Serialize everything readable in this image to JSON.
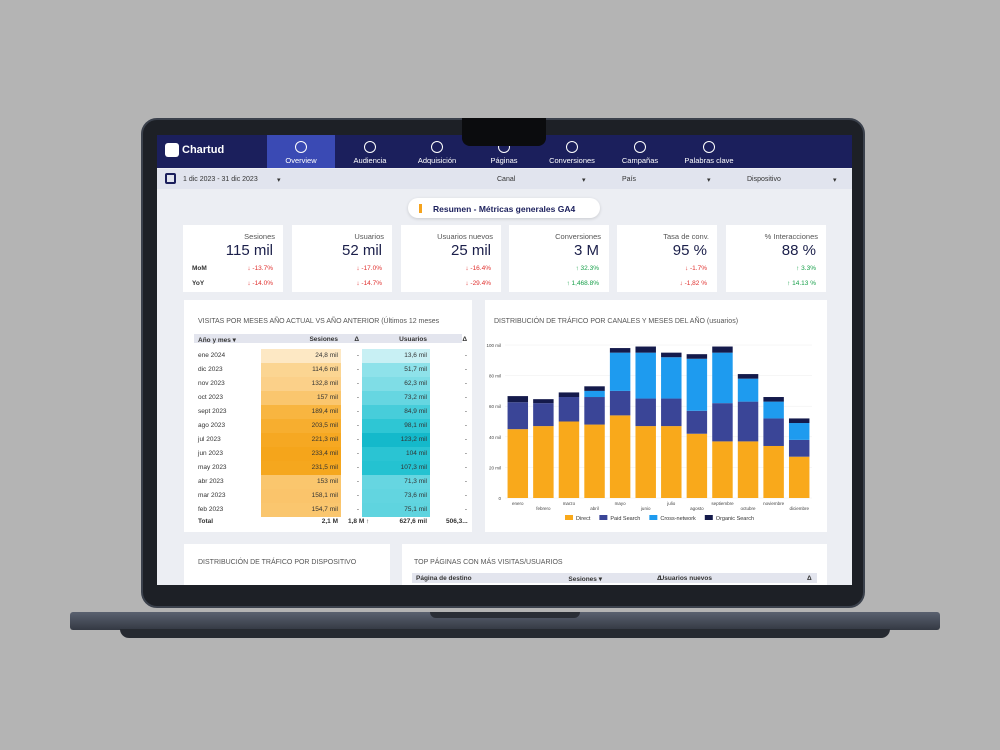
{
  "nav": {
    "logo": "Chartud",
    "tabs": [
      "Overview",
      "Audiencia",
      "Adquisición",
      "Páginas",
      "Conversiones",
      "Campañas",
      "Palabras clave"
    ]
  },
  "filters": {
    "date": "1 dic 2023 - 31 dic 2023",
    "channel": "Canal",
    "country": "País",
    "device": "Dispositivo"
  },
  "summary_title": "Resumen - Métricas generales GA4",
  "kpis": {
    "row_labels": [
      "MoM",
      "YoY"
    ],
    "cards": [
      {
        "label": "Sesiones",
        "value": "115 mil",
        "mom": "↓ -13.7%",
        "yoy": "↓ -14.0%"
      },
      {
        "label": "Usuarios",
        "value": "52 mil",
        "mom": "↓ -17.0%",
        "yoy": "↓ -14.7%"
      },
      {
        "label": "Usuarios nuevos",
        "value": "25 mil",
        "mom": "↓ -16.4%",
        "yoy": "↓ -29.4%"
      },
      {
        "label": "Conversiones",
        "value": "3 M",
        "mom": "↑ 32.3%",
        "yoy": "↑ 1,468.8%"
      },
      {
        "label": "Tasa de conv.",
        "value": "95 %",
        "mom": "↓ -1.7%",
        "yoy": "↓ -1,82 %"
      },
      {
        "label": "% Interacciones",
        "value": "88 %",
        "mom": "↑ 3.3%",
        "yoy": "↑ 14.13 %"
      }
    ]
  },
  "table": {
    "title": "VISITAS POR MESES AÑO ACTUAL VS AÑO ANTERIOR (Últimos 12 meses",
    "columns": [
      "Año y mes ▾",
      "Sesiones",
      "Δ",
      "Usuarios",
      "Δ"
    ],
    "rows": [
      [
        "ene 2024",
        "24,8 mil",
        "-",
        "13,6 mil",
        "-"
      ],
      [
        "dic 2023",
        "114,6 mil",
        "-",
        "51,7 mil",
        "-"
      ],
      [
        "nov 2023",
        "132,8 mil",
        "-",
        "62,3 mil",
        "-"
      ],
      [
        "oct 2023",
        "157 mil",
        "-",
        "73,2 mil",
        "-"
      ],
      [
        "sept 2023",
        "189,4 mil",
        "-",
        "84,9 mil",
        "-"
      ],
      [
        "ago 2023",
        "203,5 mil",
        "-",
        "98,1 mil",
        "-"
      ],
      [
        "jul 2023",
        "221,3 mil",
        "-",
        "123,2 mil",
        "-"
      ],
      [
        "jun 2023",
        "233,4 mil",
        "-",
        "104 mil",
        "-"
      ],
      [
        "may 2023",
        "231,5 mil",
        "-",
        "107,3 mil",
        "-"
      ],
      [
        "abr 2023",
        "153 mil",
        "-",
        "71,3 mil",
        "-"
      ],
      [
        "mar 2023",
        "158,1 mil",
        "-",
        "73,6 mil",
        "-"
      ],
      [
        "feb 2023",
        "154,7 mil",
        "-",
        "75,1 mil",
        "-"
      ]
    ],
    "total": [
      "Total",
      "2,1 M",
      "1,8 M ↑",
      "627,6 mil",
      "506,3..."
    ]
  },
  "chart_data": {
    "type": "bar",
    "stacked": true,
    "title": "DISTRIBUCIÓN DE TRÁFICO POR CANALES Y MESES DEL AÑO (usuarios)",
    "categories": [
      "enero",
      "febrero",
      "marzo",
      "abril",
      "mayo",
      "junio",
      "julio",
      "agosto",
      "septiembre",
      "octubre",
      "noviembre",
      "diciembre"
    ],
    "series": [
      {
        "name": "Direct",
        "color": "#f9a91b",
        "values": [
          45000,
          47000,
          50000,
          48000,
          54000,
          47000,
          47000,
          42000,
          37000,
          37000,
          34000,
          27000
        ]
      },
      {
        "name": "Paid Search",
        "color": "#3a4597",
        "values": [
          17600,
          15000,
          16000,
          18000,
          16000,
          18000,
          18000,
          15000,
          25000,
          26000,
          18000,
          11000
        ]
      },
      {
        "name": "Cross-network",
        "color": "#1e9bef",
        "values": [
          0,
          0,
          0,
          4000,
          25000,
          30000,
          27000,
          34000,
          33000,
          15000,
          11000,
          11000
        ]
      },
      {
        "name": "Organic Search",
        "color": "#141a4b",
        "values": [
          4000,
          2600,
          3000,
          3000,
          3000,
          4000,
          3000,
          3000,
          4000,
          3000,
          3000,
          3000
        ]
      }
    ],
    "ylim": [
      0,
      100000
    ],
    "yticks": [
      {
        "value": 0,
        "label": "0"
      },
      {
        "value": 20000,
        "label": "20 mil"
      },
      {
        "value": 40000,
        "label": "40 mil"
      },
      {
        "value": 60000,
        "label": "60 mil"
      },
      {
        "value": 80000,
        "label": "80 mil"
      },
      {
        "value": 100000,
        "label": "100 mil"
      }
    ],
    "legend": "bottom"
  },
  "bottom": {
    "device_title": "DISTRIBUCIÓN DE TRÁFICO POR DISPOSITIVO",
    "pages_title": "TOP PÁGINAS CON MÁS VISITAS/USUARIOS",
    "pages_columns": [
      "Página de destino",
      "Sesiones ▾",
      "Δ",
      "Usuarios nuevos",
      "Δ"
    ]
  }
}
